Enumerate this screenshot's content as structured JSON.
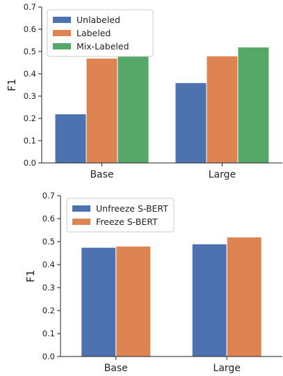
{
  "colors": {
    "blue": "#4c72b0",
    "orange": "#dd8452",
    "green": "#55a868"
  },
  "chart_data": [
    {
      "type": "bar",
      "categories": [
        "Base",
        "Large"
      ],
      "ylabel": "F1",
      "xlabel": "",
      "ylim": [
        0,
        0.7
      ],
      "yticks": [
        "0.0",
        "0.1",
        "0.2",
        "0.3",
        "0.4",
        "0.5",
        "0.6",
        "0.7"
      ],
      "legend_position": "top-left",
      "grid": false,
      "series": [
        {
          "name": "Unlabeled",
          "values": [
            0.22,
            0.36
          ],
          "color": "#4c72b0"
        },
        {
          "name": "Labeled",
          "values": [
            0.47,
            0.48
          ],
          "color": "#dd8452"
        },
        {
          "name": "Mix-Labeled",
          "values": [
            0.48,
            0.52
          ],
          "color": "#55a868"
        }
      ]
    },
    {
      "type": "bar",
      "categories": [
        "Base",
        "Large"
      ],
      "ylabel": "F1",
      "xlabel": "",
      "ylim": [
        0,
        0.7
      ],
      "yticks": [
        "0.0",
        "0.1",
        "0.2",
        "0.3",
        "0.4",
        "0.5",
        "0.6",
        "0.7"
      ],
      "legend_position": "top-left",
      "grid": false,
      "series": [
        {
          "name": "Unfreeze S-BERT",
          "values": [
            0.475,
            0.49
          ],
          "color": "#4c72b0"
        },
        {
          "name": "Freeze S-BERT",
          "values": [
            0.48,
            0.52
          ],
          "color": "#dd8452"
        }
      ]
    }
  ]
}
